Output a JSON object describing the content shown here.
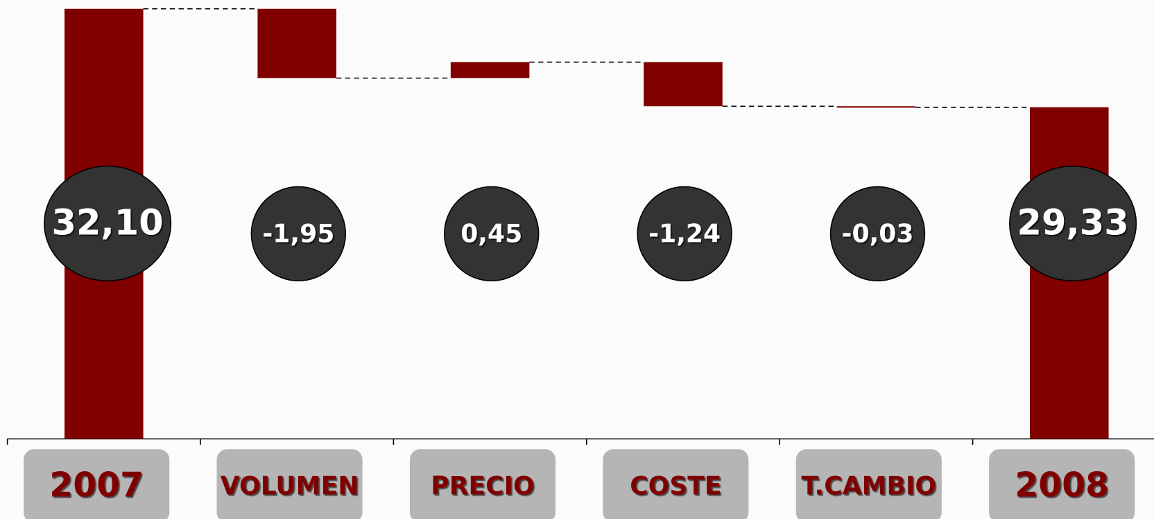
{
  "chart_data": {
    "type": "waterfall",
    "categories": [
      "2007",
      "VOLUMEN",
      "PRECIO",
      "COSTE",
      "T.CAMBIO",
      "2008"
    ],
    "values": [
      32.1,
      -1.95,
      0.45,
      -1.24,
      -0.03,
      29.33
    ],
    "value_labels": [
      "32,10",
      "-1,95",
      "0,45",
      "-1,24",
      "-0,03",
      "29,33"
    ],
    "color": "#800000",
    "ylim": [
      20,
      32.1
    ]
  }
}
